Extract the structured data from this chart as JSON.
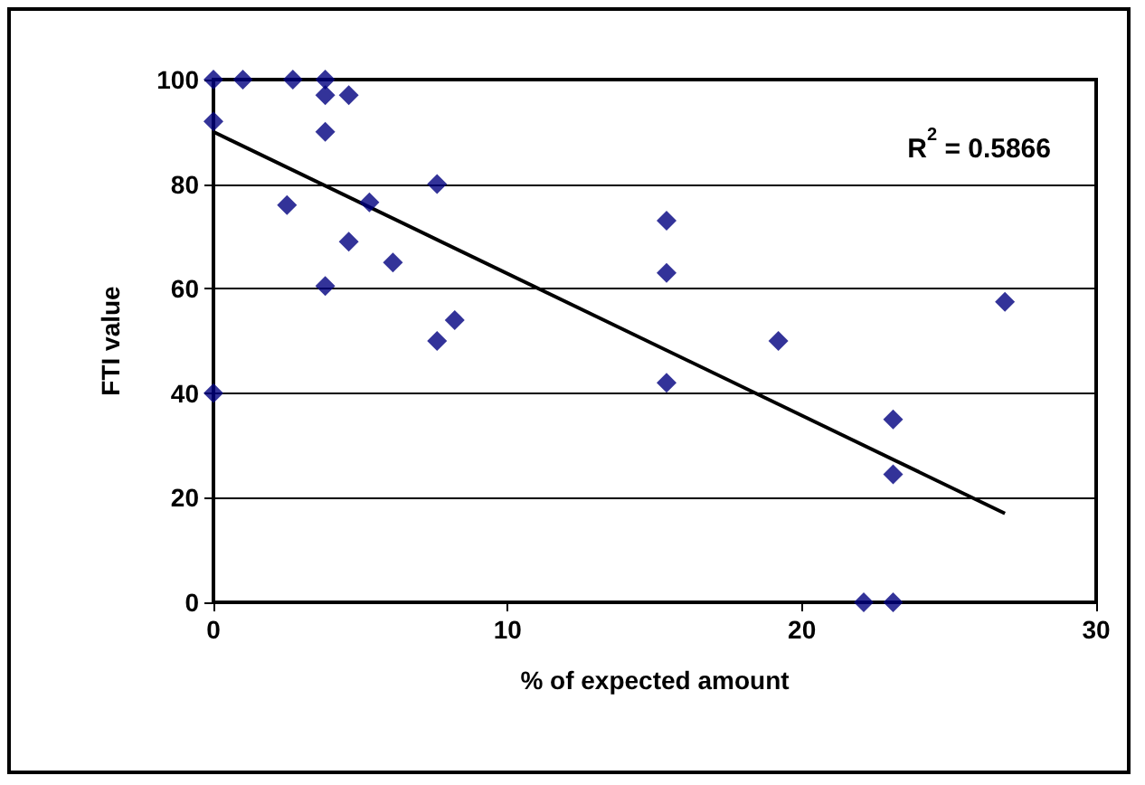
{
  "chart_data": {
    "type": "scatter",
    "xlabel": "% of expected amount",
    "ylabel": "FTI value",
    "annotations": [
      "R$^{2}$ = 0.5866"
    ],
    "marker": "diamond",
    "grid": "y",
    "xlim": [
      0,
      30
    ],
    "xticks": [
      0,
      10,
      20,
      30
    ],
    "ylim": [
      0,
      100
    ],
    "yticks": [
      0,
      20,
      40,
      60,
      80,
      100
    ],
    "series": [
      {
        "color": "#000080",
        "x": [
          0,
          1,
          2.7,
          3.8,
          3.8,
          4.6,
          0,
          3.8,
          2.5,
          5.3,
          7.6,
          4.6,
          6.1,
          3.8,
          7.6,
          8.2,
          0,
          15.4,
          15.4,
          15.4,
          19.2,
          23.1,
          23.1,
          22.1,
          23.1,
          26.9
        ],
        "values": [
          100,
          100,
          100,
          100,
          97,
          97,
          92,
          90,
          76,
          76.5,
          80,
          69,
          65,
          60.5,
          50,
          54,
          40,
          73,
          63,
          42,
          50,
          35,
          24.5,
          0,
          0,
          57.5
        ]
      },
      {
        "type": "line",
        "color": "#000000",
        "marker": "none",
        "x": [
          0,
          26.9
        ],
        "values": [
          90,
          17
        ]
      }
    ]
  }
}
